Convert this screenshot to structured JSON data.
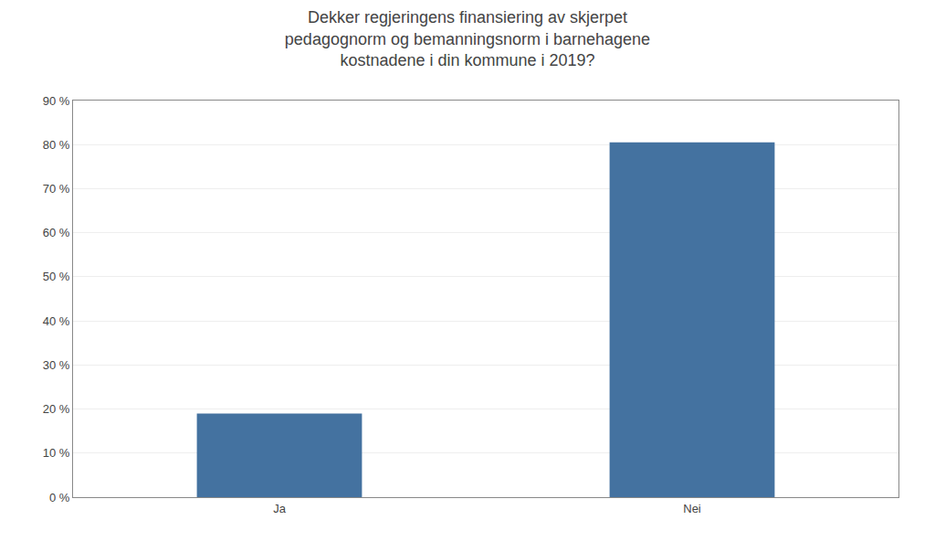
{
  "chart_data": {
    "type": "bar",
    "title": "Dekker regjeringens finansiering av skjerpet\npedagognorm og bemanningsnorm i barnehagene\nkostnadene i din kommune i 2019?",
    "categories": [
      "Ja",
      "Nei"
    ],
    "values": [
      0.19,
      0.805
    ],
    "color": "#4472A0",
    "ylim": [
      0,
      0.9
    ],
    "yticks": [
      {
        "value": 0.0,
        "label": "0 %"
      },
      {
        "value": 0.1,
        "label": "10 %"
      },
      {
        "value": 0.2,
        "label": "20 %"
      },
      {
        "value": 0.3,
        "label": "30 %"
      },
      {
        "value": 0.4,
        "label": "40 %"
      },
      {
        "value": 0.5,
        "label": "50 %"
      },
      {
        "value": 0.6,
        "label": "60 %"
      },
      {
        "value": 0.7,
        "label": "70 %"
      },
      {
        "value": 0.8,
        "label": "80 %"
      },
      {
        "value": 0.9,
        "label": "90 %"
      }
    ],
    "grid": true
  }
}
